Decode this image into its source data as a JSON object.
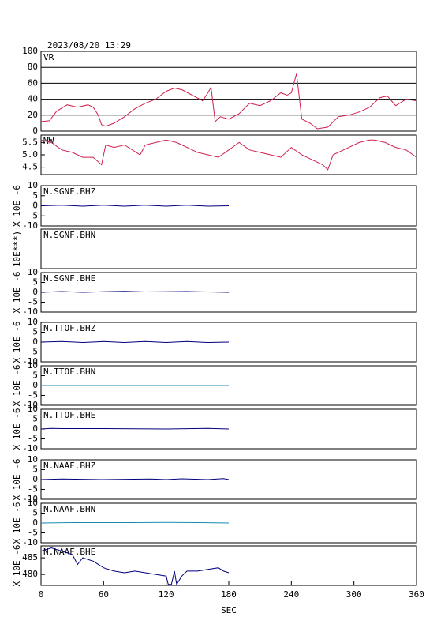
{
  "chart_data": [
    {
      "type": "line",
      "title": "2023/08/20  13:29",
      "label": "VR",
      "color": "#d0204c",
      "grid": true,
      "xlim": [
        0,
        360
      ],
      "ylim": [
        0,
        100
      ],
      "yticks": [
        0,
        20,
        40,
        60,
        80,
        100
      ],
      "x": [
        0,
        8,
        15,
        25,
        35,
        45,
        50,
        55,
        58,
        62,
        70,
        80,
        90,
        100,
        110,
        120,
        128,
        135,
        145,
        155,
        160,
        163,
        167,
        172,
        180,
        190,
        200,
        210,
        220,
        230,
        236,
        240,
        245,
        250,
        258,
        265,
        275,
        285,
        295,
        305,
        315,
        325,
        332,
        340,
        350,
        360
      ],
      "values": [
        12,
        13,
        25,
        33,
        30,
        33,
        30,
        20,
        8,
        6,
        10,
        18,
        28,
        35,
        40,
        50,
        54,
        52,
        45,
        38,
        48,
        55,
        12,
        18,
        15,
        22,
        35,
        32,
        38,
        48,
        45,
        48,
        72,
        15,
        10,
        3,
        5,
        18,
        20,
        24,
        30,
        42,
        44,
        32,
        40,
        38
      ]
    },
    {
      "type": "line",
      "label": "MW",
      "color": "#d0204c",
      "xlim": [
        0,
        360
      ],
      "ylim": [
        4.2,
        5.8
      ],
      "yticks": [
        4.5,
        {
          "value": 5,
          "label": "5.0"
        },
        5.5
      ],
      "x": [
        0,
        10,
        20,
        30,
        40,
        50,
        58,
        62,
        70,
        80,
        95,
        100,
        110,
        120,
        130,
        140,
        150,
        160,
        170,
        180,
        190,
        200,
        210,
        220,
        230,
        240,
        250,
        260,
        270,
        275,
        280,
        290,
        305,
        315,
        320,
        330,
        340,
        350,
        360
      ],
      "values": [
        5.6,
        5.5,
        5.2,
        5.1,
        4.9,
        4.9,
        4.6,
        5.4,
        5.3,
        5.4,
        5.0,
        5.4,
        5.5,
        5.6,
        5.5,
        5.3,
        5.1,
        5.0,
        4.9,
        5.2,
        5.5,
        5.2,
        5.1,
        5.0,
        4.9,
        5.3,
        5.0,
        4.8,
        4.6,
        4.4,
        5.0,
        5.2,
        5.5,
        5.6,
        5.6,
        5.5,
        5.3,
        5.2,
        4.9
      ]
    },
    {
      "type": "line",
      "label": "N.SGNF.BHZ",
      "ylabel": "X 10E -6",
      "color": "#00007f",
      "xlim": [
        0,
        360
      ],
      "ylim": [
        -10,
        10
      ],
      "yticks": [
        -10,
        -5,
        0,
        5,
        10
      ],
      "x": [
        0,
        20,
        40,
        60,
        80,
        100,
        120,
        140,
        160,
        180
      ],
      "values": [
        0,
        0.3,
        -0.2,
        0.3,
        -0.2,
        0.3,
        -0.2,
        0.3,
        -0.2,
        0
      ]
    },
    {
      "type": "line",
      "label": "N.SGNF.BHN",
      "ylabel": "10E***)",
      "xlim": [
        0,
        360
      ]
    },
    {
      "type": "line",
      "label": "N.SGNF.BHE",
      "ylabel": "X 10E -6",
      "color": "#00007f",
      "xlim": [
        0,
        360
      ],
      "ylim": [
        -10,
        10
      ],
      "yticks": [
        -10,
        -5,
        0,
        5,
        10
      ],
      "x": [
        0,
        20,
        40,
        60,
        80,
        100,
        120,
        140,
        160,
        180
      ],
      "values": [
        0,
        0.4,
        0,
        0.3,
        0.5,
        0.2,
        0.3,
        0.4,
        0.2,
        0
      ]
    },
    {
      "type": "line",
      "label": "N.TTOF.BHZ",
      "ylabel": "X 10E -6",
      "color": "#00007f",
      "xlim": [
        0,
        360
      ],
      "ylim": [
        -10,
        10
      ],
      "yticks": [
        -10,
        -5,
        0,
        5,
        10
      ],
      "x": [
        0,
        20,
        40,
        60,
        80,
        100,
        120,
        140,
        160,
        180
      ],
      "values": [
        0,
        0.3,
        -0.2,
        0.3,
        -0.2,
        0.3,
        -0.2,
        0.3,
        -0.2,
        0
      ]
    },
    {
      "type": "line",
      "label": "N.TTOF.BHN",
      "ylabel": "X 10E -6",
      "color": "#1a8cb0",
      "xlim": [
        0,
        360
      ],
      "ylim": [
        -10,
        10
      ],
      "yticks": [
        -10,
        -5,
        0,
        5,
        10
      ],
      "x": [
        0,
        60,
        120,
        180
      ],
      "values": [
        0,
        0,
        0,
        0
      ]
    },
    {
      "type": "line",
      "label": "N.TTOF.BHE",
      "ylabel": "X 10E -6",
      "color": "#00007f",
      "xlim": [
        0,
        360
      ],
      "ylim": [
        -10,
        10
      ],
      "yticks": [
        -10,
        -5,
        0,
        5,
        10
      ],
      "x": [
        0,
        10,
        20,
        60,
        120,
        160,
        180
      ],
      "values": [
        0,
        0.3,
        0.2,
        0.2,
        0,
        0.3,
        0
      ]
    },
    {
      "type": "line",
      "label": "N.NAAF.BHZ",
      "ylabel": "X 10E -6",
      "color": "#00007f",
      "xlim": [
        0,
        360
      ],
      "ylim": [
        -10,
        10
      ],
      "yticks": [
        -10,
        -5,
        0,
        5,
        10
      ],
      "x": [
        0,
        20,
        60,
        105,
        120,
        135,
        160,
        175,
        180
      ],
      "values": [
        0,
        0.3,
        0,
        0.3,
        0,
        0.4,
        0,
        0.5,
        0
      ]
    },
    {
      "type": "line",
      "label": "N.NAAF.BHN",
      "ylabel": "X 10E -6",
      "color": "#1a8cb0",
      "xlim": [
        0,
        360
      ],
      "ylim": [
        -10,
        10
      ],
      "yticks": [
        -10,
        -5,
        0,
        5,
        10
      ],
      "x": [
        0,
        30,
        60,
        90,
        120,
        150,
        180
      ],
      "values": [
        0,
        0.2,
        0.2,
        0.2,
        0.3,
        0.2,
        0
      ]
    },
    {
      "type": "line",
      "label": "N.NAAF.BHE",
      "ylabel": "X 10E -6",
      "color": "#00007f",
      "xlabel": "SEC",
      "xlim": [
        0,
        360
      ],
      "xticks": [
        0,
        60,
        120,
        180,
        240,
        300,
        360
      ],
      "ylim": [
        476.7,
        488.6
      ],
      "yticks": [
        480,
        485
      ],
      "x": [
        0,
        10,
        20,
        30,
        35,
        40,
        50,
        60,
        70,
        80,
        90,
        100,
        110,
        120,
        122,
        125,
        128,
        130,
        135,
        140,
        150,
        160,
        170,
        175,
        180
      ],
      "values": [
        487,
        488,
        487,
        486,
        483,
        485,
        484,
        482,
        481,
        480.5,
        481,
        480.5,
        480,
        479.5,
        477,
        477,
        481,
        477,
        479.5,
        481,
        481,
        481.5,
        482,
        481,
        480.5
      ]
    }
  ]
}
